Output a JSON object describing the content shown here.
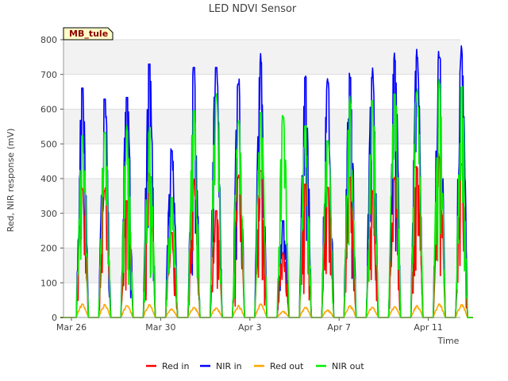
{
  "chart_data": {
    "type": "line",
    "title": "LED NDVI Sensor",
    "xlabel": "Time",
    "ylabel": "Red, NIR response (mV)",
    "badge": "MB_tule",
    "x_ticks": [
      "Mar 26",
      "Mar 30",
      "Apr 3",
      "Apr 7",
      "Apr 11"
    ],
    "y_ticks": [
      0,
      100,
      200,
      300,
      400,
      500,
      600,
      700,
      800
    ],
    "ylim": [
      0,
      800
    ],
    "grid": true,
    "legend_position": "bottom",
    "days": [
      "Mar 26",
      "Mar 27",
      "Mar 28",
      "Mar 29",
      "Mar 30",
      "Mar 31",
      "Apr 1",
      "Apr 2",
      "Apr 3",
      "Apr 4",
      "Apr 5",
      "Apr 6",
      "Apr 7",
      "Apr 8",
      "Apr 9",
      "Apr 10",
      "Apr 11",
      "Apr 12"
    ],
    "series": [
      {
        "name": "Red in",
        "color": "#ff0000",
        "daily_peak": [
          385,
          380,
          350,
          430,
          255,
          400,
          320,
          420,
          440,
          190,
          400,
          390,
          420,
          380,
          415,
          445,
          480,
          460
        ]
      },
      {
        "name": "NIR in",
        "color": "#0000ff",
        "daily_peak": [
          688,
          655,
          660,
          760,
          500,
          750,
          750,
          700,
          765,
          290,
          720,
          705,
          720,
          720,
          770,
          780,
          780,
          785
        ]
      },
      {
        "name": "Red out",
        "color": "#ffa500",
        "daily_peak": [
          40,
          38,
          35,
          38,
          25,
          30,
          28,
          35,
          40,
          18,
          30,
          22,
          35,
          30,
          32,
          35,
          40,
          38
        ]
      },
      {
        "name": "NIR out",
        "color": "#00ee00",
        "daily_peak": [
          545,
          555,
          560,
          555,
          360,
          620,
          660,
          585,
          615,
          600,
          575,
          530,
          640,
          650,
          670,
          675,
          690,
          690
        ]
      }
    ]
  }
}
